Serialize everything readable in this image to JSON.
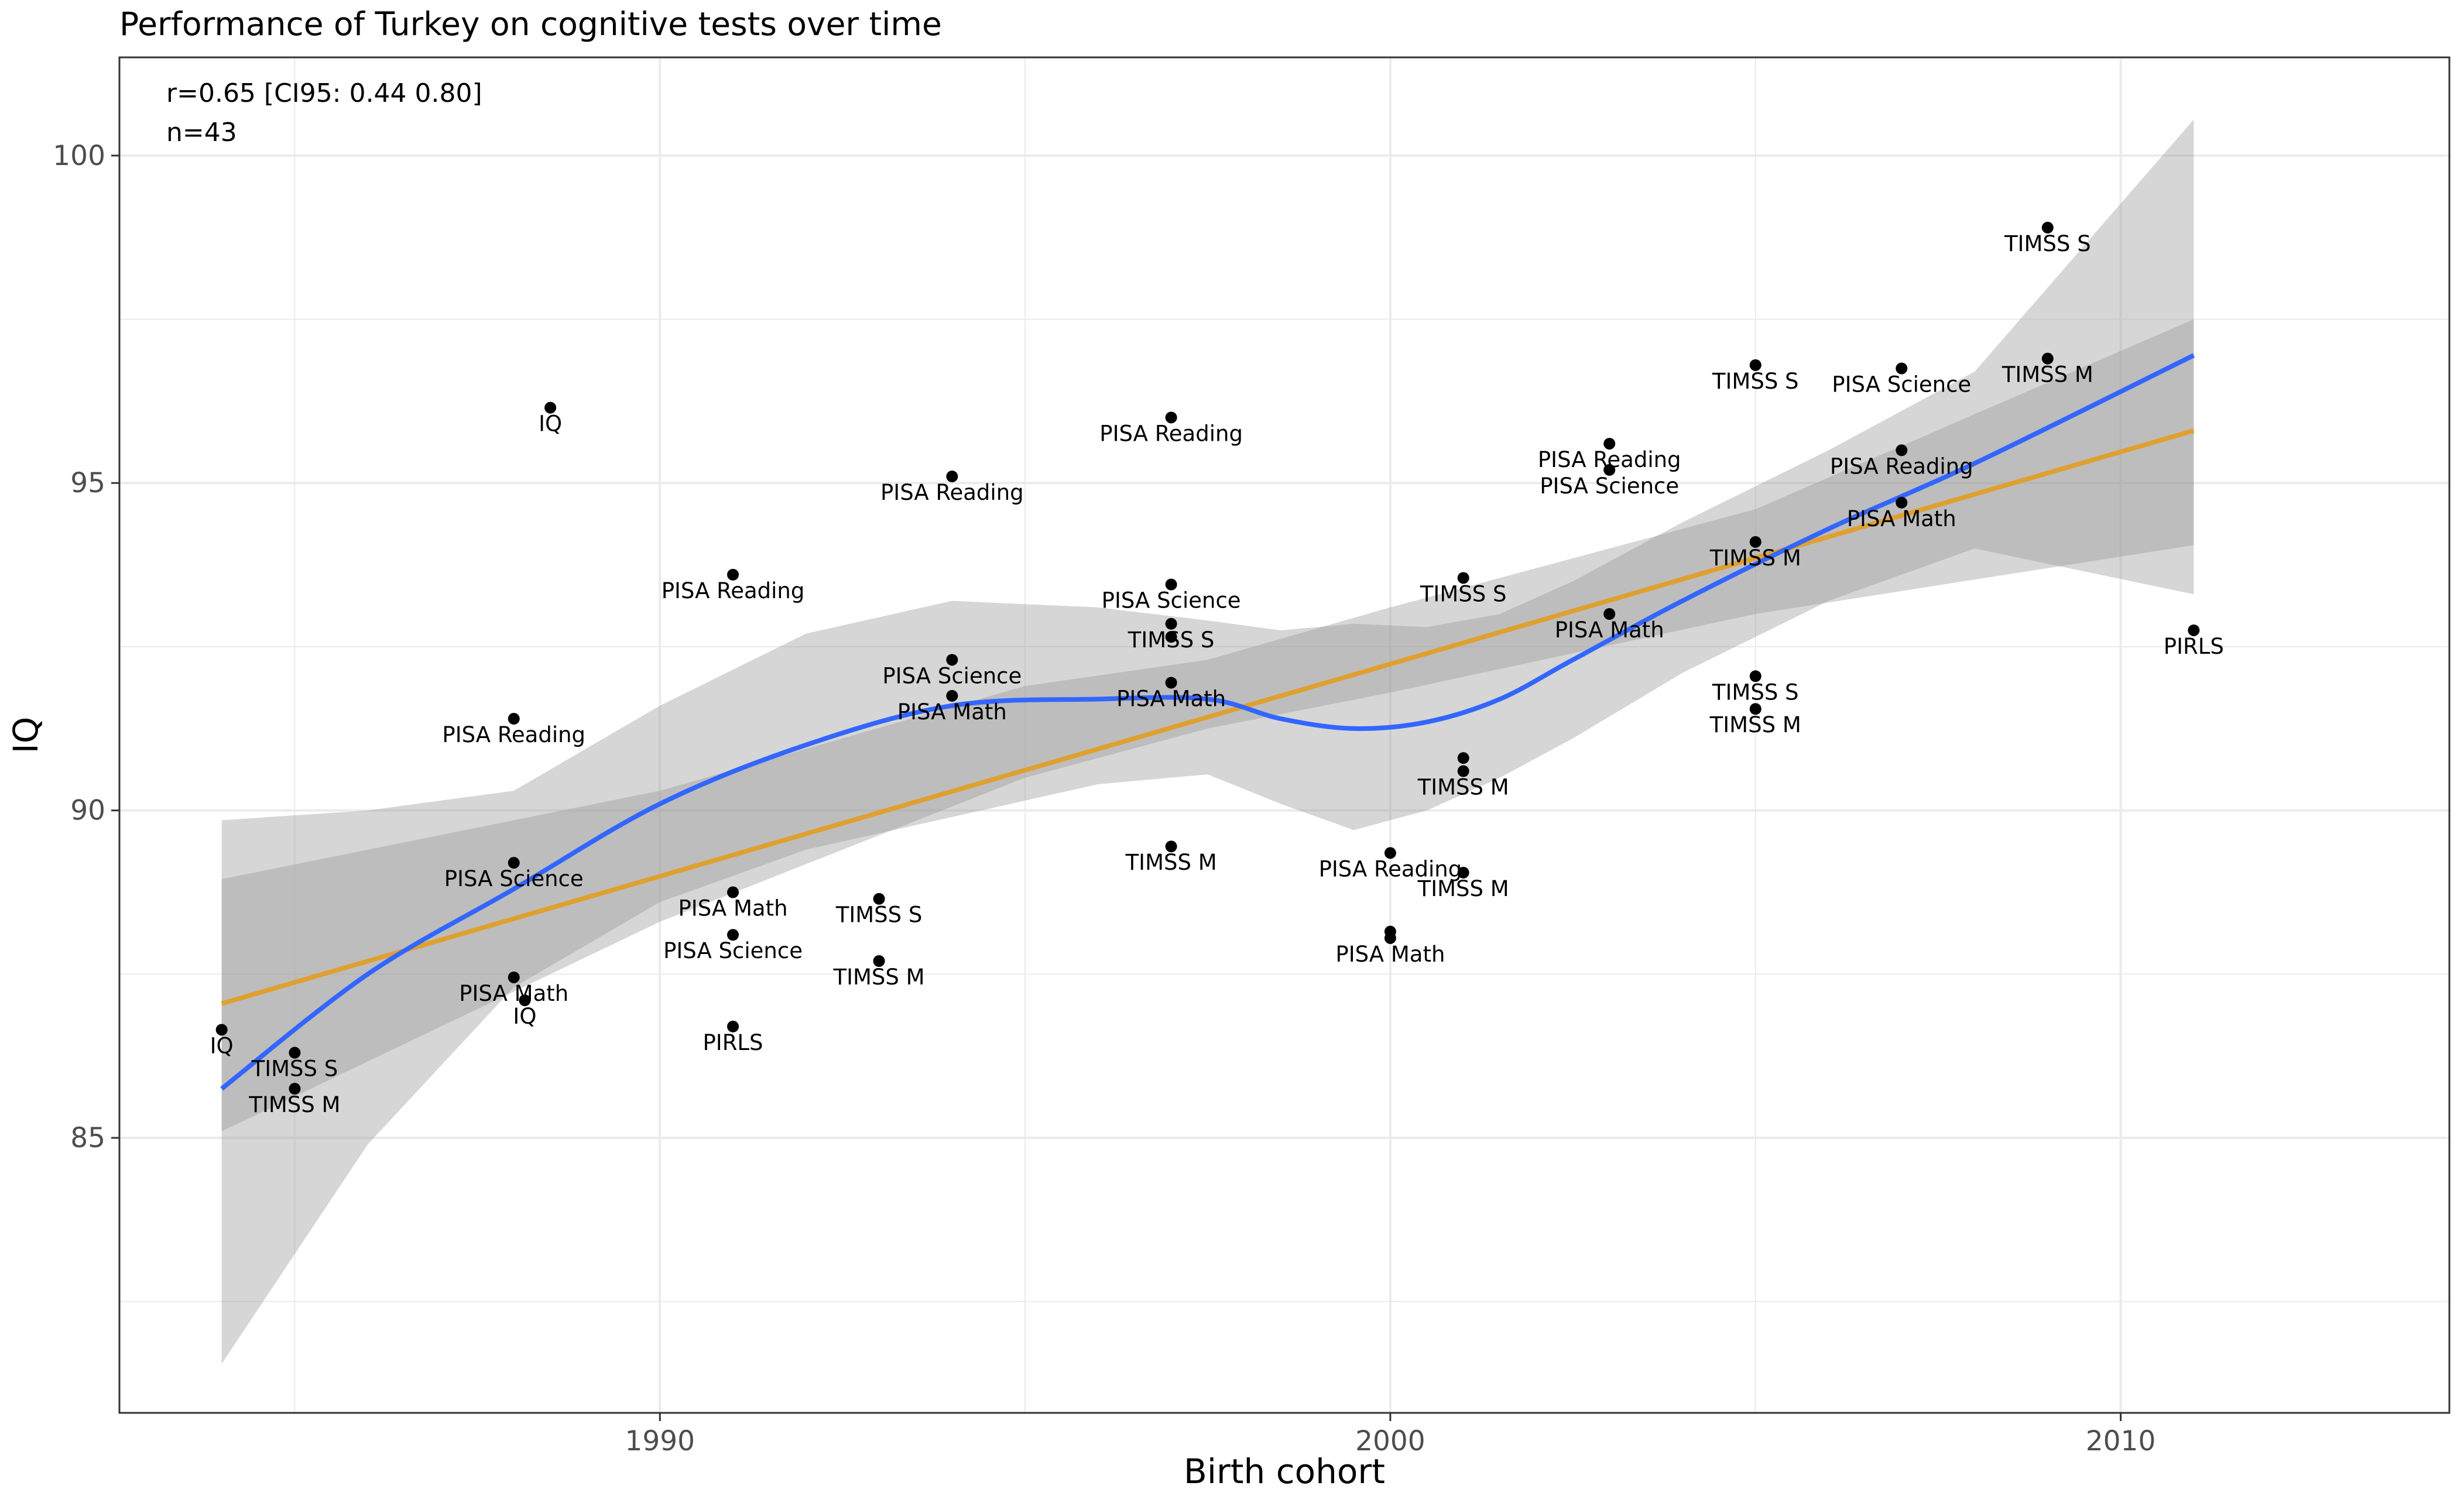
{
  "chart_data": {
    "type": "scatter",
    "title": "Performance of Turkey on cognitive tests over time",
    "xlabel": "Birth cohort",
    "ylabel": "IQ",
    "xlim": [
      1982.6,
      2014.5
    ],
    "ylim": [
      80.8,
      101.5
    ],
    "x_ticks": [
      1990,
      2000,
      2010
    ],
    "y_ticks": [
      85,
      90,
      95,
      100
    ],
    "grid": true,
    "annotations": [
      "r=0.65 [CI95: 0.44 0.80]",
      "n=43"
    ],
    "colors": {
      "points": "#000000",
      "loess": "#3366ff",
      "linear": "#e0a030",
      "ribbon": "#999999",
      "panel_border": "#333333",
      "grid": "#ebebeb"
    },
    "points": [
      {
        "x": 1984.0,
        "y": 86.65,
        "label": "IQ"
      },
      {
        "x": 1985.0,
        "y": 86.3,
        "label": "TIMSS S"
      },
      {
        "x": 1985.0,
        "y": 85.75,
        "label": "TIMSS M"
      },
      {
        "x": 1988.0,
        "y": 91.4,
        "label": "PISA Reading"
      },
      {
        "x": 1988.0,
        "y": 89.2,
        "label": "PISA Science"
      },
      {
        "x": 1988.0,
        "y": 87.45,
        "label": "PISA Math"
      },
      {
        "x": 1988.15,
        "y": 87.1,
        "label": "IQ"
      },
      {
        "x": 1988.5,
        "y": 96.15,
        "label": "IQ"
      },
      {
        "x": 1991.0,
        "y": 93.6,
        "label": "PISA Reading"
      },
      {
        "x": 1991.0,
        "y": 88.75,
        "label": "PISA Math"
      },
      {
        "x": 1991.0,
        "y": 88.1,
        "label": "PISA Science"
      },
      {
        "x": 1991.0,
        "y": 86.7,
        "label": "PIRLS"
      },
      {
        "x": 1993.0,
        "y": 88.65,
        "label": "TIMSS S"
      },
      {
        "x": 1993.0,
        "y": 87.7,
        "label": "TIMSS M"
      },
      {
        "x": 1994.0,
        "y": 95.1,
        "label": "PISA Reading"
      },
      {
        "x": 1994.0,
        "y": 92.3,
        "label": "PISA Science"
      },
      {
        "x": 1994.0,
        "y": 91.75,
        "label": "PISA Math"
      },
      {
        "x": 1997.0,
        "y": 96.0,
        "label": "PISA Reading"
      },
      {
        "x": 1997.0,
        "y": 93.45,
        "label": "PISA Science"
      },
      {
        "x": 1997.0,
        "y": 92.85,
        "label": "TIMSS S"
      },
      {
        "x": 1997.0,
        "y": 92.65,
        "label": ""
      },
      {
        "x": 1997.0,
        "y": 91.95,
        "label": "PISA Math"
      },
      {
        "x": 1997.0,
        "y": 89.45,
        "label": "TIMSS M"
      },
      {
        "x": 2000.0,
        "y": 89.35,
        "label": "PISA Reading"
      },
      {
        "x": 2000.0,
        "y": 88.15,
        "label": ""
      },
      {
        "x": 2000.0,
        "y": 88.05,
        "label": "PISA Math"
      },
      {
        "x": 2001.0,
        "y": 93.55,
        "label": "TIMSS S"
      },
      {
        "x": 2001.0,
        "y": 90.8,
        "label": ""
      },
      {
        "x": 2001.0,
        "y": 90.6,
        "label": "TIMSS M"
      },
      {
        "x": 2001.0,
        "y": 89.05,
        "label": "TIMSS M"
      },
      {
        "x": 2003.0,
        "y": 95.6,
        "label": "PISA Reading"
      },
      {
        "x": 2003.0,
        "y": 95.2,
        "label": "PISA Science"
      },
      {
        "x": 2003.0,
        "y": 93.0,
        "label": "PISA Math"
      },
      {
        "x": 2005.0,
        "y": 96.8,
        "label": "TIMSS S"
      },
      {
        "x": 2005.0,
        "y": 94.1,
        "label": "TIMSS M"
      },
      {
        "x": 2005.0,
        "y": 92.05,
        "label": "TIMSS S"
      },
      {
        "x": 2005.0,
        "y": 91.55,
        "label": "TIMSS M"
      },
      {
        "x": 2007.0,
        "y": 96.75,
        "label": "PISA Science"
      },
      {
        "x": 2007.0,
        "y": 95.5,
        "label": "PISA Reading"
      },
      {
        "x": 2007.0,
        "y": 94.7,
        "label": "PISA Math"
      },
      {
        "x": 2009.0,
        "y": 98.9,
        "label": "TIMSS S"
      },
      {
        "x": 2009.0,
        "y": 96.9,
        "label": "TIMSS M"
      },
      {
        "x": 2011.0,
        "y": 92.75,
        "label": "PIRLS"
      }
    ],
    "linear_fit": {
      "x": [
        1984.0,
        2011.0
      ],
      "y": [
        87.05,
        95.8
      ],
      "ci_lower": [
        85.1,
        94.05
      ],
      "ci_upper": [
        88.95,
        97.5
      ],
      "ci_x": [
        1984.0,
        1990.0,
        1995.0,
        1997.5,
        2000.0,
        2005.0,
        2011.0
      ],
      "ci_lower_all": [
        85.1,
        88.3,
        90.5,
        91.25,
        91.8,
        93.0,
        94.05
      ],
      "ci_upper_all": [
        88.95,
        90.3,
        91.9,
        92.3,
        93.1,
        94.6,
        97.5
      ]
    },
    "loess_fit": {
      "x": [
        1984.0,
        1986.0,
        1988.0,
        1990.0,
        1992.0,
        1994.0,
        1996.0,
        1997.5,
        1998.5,
        1999.5,
        2000.5,
        2001.5,
        2002.5,
        2004.0,
        2006.0,
        2008.0,
        2011.0
      ],
      "y": [
        85.75,
        87.5,
        88.8,
        90.1,
        91.0,
        91.6,
        91.7,
        91.7,
        91.4,
        91.25,
        91.35,
        91.7,
        92.3,
        93.2,
        94.3,
        95.3,
        96.95
      ],
      "ci_lower": [
        81.55,
        84.9,
        87.3,
        88.6,
        89.4,
        89.9,
        90.4,
        90.55,
        90.1,
        89.7,
        90.0,
        90.5,
        91.1,
        92.1,
        93.2,
        94.0,
        93.3
      ],
      "ci_upper": [
        89.85,
        90.0,
        90.3,
        91.6,
        92.7,
        93.2,
        93.1,
        92.9,
        92.75,
        92.85,
        92.8,
        93.0,
        93.5,
        94.4,
        95.5,
        96.7,
        100.55
      ]
    }
  }
}
